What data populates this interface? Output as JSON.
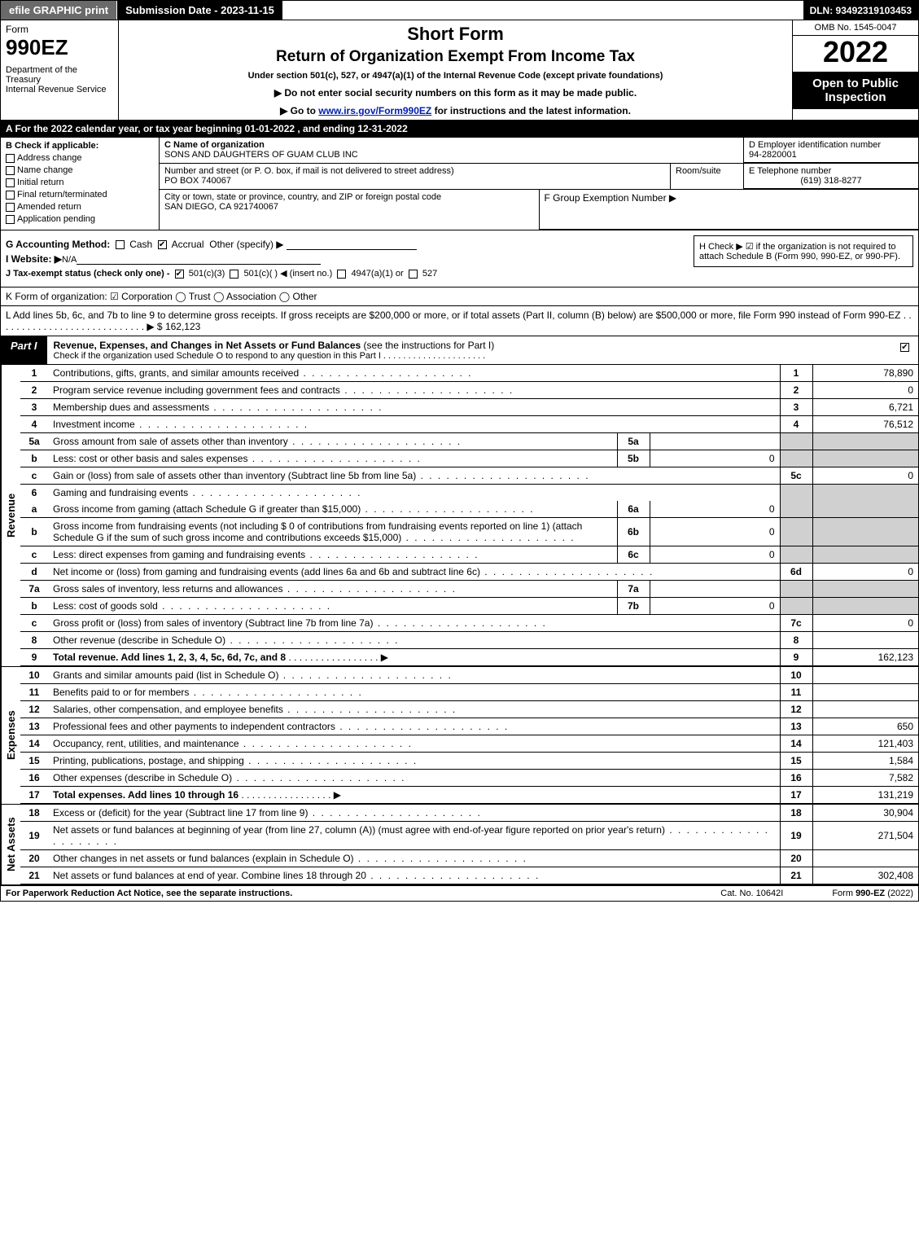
{
  "topbar": {
    "efile": "efile GRAPHIC print",
    "submission": "Submission Date - 2023-11-15",
    "dln": "DLN: 93492319103453"
  },
  "header": {
    "form_word": "Form",
    "form_no": "990EZ",
    "dept1": "Department of the Treasury",
    "dept2": "Internal Revenue Service",
    "short": "Short Form",
    "return": "Return of Organization Exempt From Income Tax",
    "under": "Under section 501(c), 527, or 4947(a)(1) of the Internal Revenue Code (except private foundations)",
    "arrow1": "▶ Do not enter social security numbers on this form as it may be made public.",
    "arrow2_pre": "▶ Go to ",
    "arrow2_link": "www.irs.gov/Form990EZ",
    "arrow2_post": " for instructions and the latest information.",
    "omb": "OMB No. 1545-0047",
    "year": "2022",
    "open": "Open to Public Inspection"
  },
  "row_a": "A  For the 2022 calendar year, or tax year beginning 01-01-2022  , and ending 12-31-2022",
  "col_b": {
    "title": "B  Check if applicable:",
    "opts": [
      "Address change",
      "Name change",
      "Initial return",
      "Final return/terminated",
      "Amended return",
      "Application pending"
    ]
  },
  "col_c": {
    "name_lbl": "C Name of organization",
    "name": "SONS AND DAUGHTERS OF GUAM CLUB INC",
    "addr_lbl": "Number and street (or P. O. box, if mail is not delivered to street address)",
    "room_lbl": "Room/suite",
    "addr": "PO BOX 740067",
    "city_lbl": "City or town, state or province, country, and ZIP or foreign postal code",
    "city": "SAN DIEGO, CA  921740067"
  },
  "col_d": {
    "ein_lbl": "D Employer identification number",
    "ein": "94-2820001",
    "tel_lbl": "E Telephone number",
    "tel": "(619) 318-8277",
    "grp_lbl": "F Group Exemption Number   ▶"
  },
  "row_g": {
    "g": "G Accounting Method:",
    "cash": "Cash",
    "accrual": "Accrual",
    "other": "Other (specify) ▶",
    "i_lbl": "I Website: ▶",
    "i_val": "N/A",
    "j": "J Tax-exempt status (check only one) -",
    "j_501c3": "501(c)(3)",
    "j_501c": "501(c)(  ) ◀ (insert no.)",
    "j_4947": "4947(a)(1) or",
    "j_527": "527",
    "h": "H  Check ▶  ☑  if the organization is not required to attach Schedule B (Form 990, 990-EZ, or 990-PF)."
  },
  "row_k": "K Form of organization:   ☑ Corporation   ◯ Trust   ◯ Association   ◯ Other",
  "row_l": {
    "text": "L Add lines 5b, 6c, and 7b to line 9 to determine gross receipts. If gross receipts are $200,000 or more, or if total assets (Part II, column (B) below) are $500,000 or more, file Form 990 instead of Form 990-EZ  .  .  .  .  .  .  .  .  .  .  .  .  .  .  .  .  .  .  .  .  .  .  .  .  .  .  .  .  ▶ $ ",
    "val": "162,123"
  },
  "part1": {
    "tab": "Part I",
    "title": "Revenue, Expenses, and Changes in Net Assets or Fund Balances",
    "sub": "(see the instructions for Part I)",
    "check_line": "Check if the organization used Schedule O to respond to any question in this Part I"
  },
  "revenue": {
    "vtab": "Revenue",
    "rows": [
      {
        "n": "1",
        "d": "Contributions, gifts, grants, and similar amounts received",
        "rn": "1",
        "rv": "78,890"
      },
      {
        "n": "2",
        "d": "Program service revenue including government fees and contracts",
        "rn": "2",
        "rv": "0"
      },
      {
        "n": "3",
        "d": "Membership dues and assessments",
        "rn": "3",
        "rv": "6,721"
      },
      {
        "n": "4",
        "d": "Investment income",
        "rn": "4",
        "rv": "76,512"
      },
      {
        "n": "5a",
        "d": "Gross amount from sale of assets other than inventory",
        "mn": "5a",
        "mv": "",
        "shade": true
      },
      {
        "n": "b",
        "d": "Less: cost or other basis and sales expenses",
        "mn": "5b",
        "mv": "0",
        "shade": true
      },
      {
        "n": "c",
        "d": "Gain or (loss) from sale of assets other than inventory (Subtract line 5b from line 5a)",
        "rn": "5c",
        "rv": "0"
      },
      {
        "n": "6",
        "d": "Gaming and fundraising events",
        "shade": true,
        "noborder": true
      },
      {
        "n": "a",
        "d": "Gross income from gaming (attach Schedule G if greater than $15,000)",
        "mn": "6a",
        "mv": "0",
        "shade": true
      },
      {
        "n": "b",
        "d": "Gross income from fundraising events (not including $  0          of contributions from fundraising events reported on line 1) (attach Schedule G if the sum of such gross income and contributions exceeds $15,000)",
        "mn": "6b",
        "mv": "0",
        "shade": true
      },
      {
        "n": "c",
        "d": "Less: direct expenses from gaming and fundraising events",
        "mn": "6c",
        "mv": "0",
        "shade": true
      },
      {
        "n": "d",
        "d": "Net income or (loss) from gaming and fundraising events (add lines 6a and 6b and subtract line 6c)",
        "rn": "6d",
        "rv": "0"
      },
      {
        "n": "7a",
        "d": "Gross sales of inventory, less returns and allowances",
        "mn": "7a",
        "mv": "",
        "shade": true
      },
      {
        "n": "b",
        "d": "Less: cost of goods sold",
        "mn": "7b",
        "mv": "0",
        "shade": true
      },
      {
        "n": "c",
        "d": "Gross profit or (loss) from sales of inventory (Subtract line 7b from line 7a)",
        "rn": "7c",
        "rv": "0"
      },
      {
        "n": "8",
        "d": "Other revenue (describe in Schedule O)",
        "rn": "8",
        "rv": ""
      },
      {
        "n": "9",
        "d": "Total revenue. Add lines 1, 2, 3, 4, 5c, 6d, 7c, and 8",
        "rn": "9",
        "rv": "162,123",
        "bold": true,
        "arrow": true
      }
    ]
  },
  "expenses": {
    "vtab": "Expenses",
    "rows": [
      {
        "n": "10",
        "d": "Grants and similar amounts paid (list in Schedule O)",
        "rn": "10",
        "rv": ""
      },
      {
        "n": "11",
        "d": "Benefits paid to or for members",
        "rn": "11",
        "rv": ""
      },
      {
        "n": "12",
        "d": "Salaries, other compensation, and employee benefits",
        "rn": "12",
        "rv": ""
      },
      {
        "n": "13",
        "d": "Professional fees and other payments to independent contractors",
        "rn": "13",
        "rv": "650"
      },
      {
        "n": "14",
        "d": "Occupancy, rent, utilities, and maintenance",
        "rn": "14",
        "rv": "121,403"
      },
      {
        "n": "15",
        "d": "Printing, publications, postage, and shipping",
        "rn": "15",
        "rv": "1,584"
      },
      {
        "n": "16",
        "d": "Other expenses (describe in Schedule O)",
        "rn": "16",
        "rv": "7,582"
      },
      {
        "n": "17",
        "d": "Total expenses. Add lines 10 through 16",
        "rn": "17",
        "rv": "131,219",
        "bold": true,
        "arrow": true
      }
    ]
  },
  "netassets": {
    "vtab": "Net Assets",
    "rows": [
      {
        "n": "18",
        "d": "Excess or (deficit) for the year (Subtract line 17 from line 9)",
        "rn": "18",
        "rv": "30,904"
      },
      {
        "n": "19",
        "d": "Net assets or fund balances at beginning of year (from line 27, column (A)) (must agree with end-of-year figure reported on prior year's return)",
        "rn": "19",
        "rv": "271,504"
      },
      {
        "n": "20",
        "d": "Other changes in net assets or fund balances (explain in Schedule O)",
        "rn": "20",
        "rv": ""
      },
      {
        "n": "21",
        "d": "Net assets or fund balances at end of year. Combine lines 18 through 20",
        "rn": "21",
        "rv": "302,408"
      }
    ]
  },
  "footer": {
    "l": "For Paperwork Reduction Act Notice, see the separate instructions.",
    "m": "Cat. No. 10642I",
    "r_pre": "Form ",
    "r_form": "990-EZ",
    "r_post": " (2022)"
  }
}
